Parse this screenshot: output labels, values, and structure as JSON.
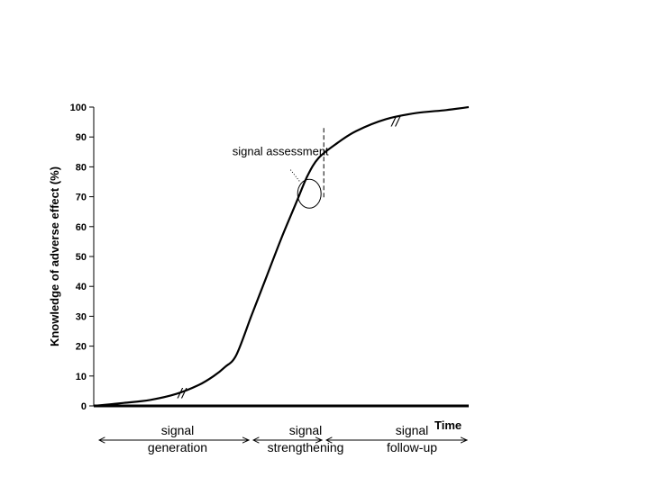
{
  "chart_data": {
    "type": "line",
    "title": "",
    "ylabel": "Knowledge of adverse effect (%)",
    "xlabel": "Time",
    "ylim": [
      0,
      100
    ],
    "y_ticks": [
      "0",
      "10",
      "20",
      "30",
      "40",
      "50",
      "60",
      "70",
      "80",
      "90",
      "100"
    ],
    "xlim": [
      0,
      100
    ],
    "grid": false,
    "series": [
      {
        "x": [
          0,
          8,
          15,
          22,
          28,
          32,
          35,
          38,
          42,
          46,
          50,
          54,
          57,
          60,
          65,
          70,
          78,
          86,
          94,
          100
        ],
        "values": [
          0,
          1,
          2,
          4,
          7,
          10,
          13,
          17,
          30,
          43,
          56,
          68,
          77,
          83,
          88,
          92,
          96,
          98,
          99,
          100
        ]
      }
    ],
    "phases": [
      {
        "line1": "signal",
        "line2": "generation",
        "x_start": 0,
        "x_end": 42
      },
      {
        "line1": "signal",
        "line2": "strengthening",
        "x_start": 42,
        "x_end": 62
      },
      {
        "line1": "signal",
        "line2": "follow-up",
        "x_start": 62,
        "x_end": 100
      }
    ],
    "annotation": {
      "label": "signal assessment",
      "x": 57.5,
      "y": 71
    },
    "break_marks": [
      {
        "text": "//",
        "x": 23.5,
        "y": 4
      },
      {
        "text": "//",
        "x": 80.5,
        "y": 95
      }
    ]
  }
}
